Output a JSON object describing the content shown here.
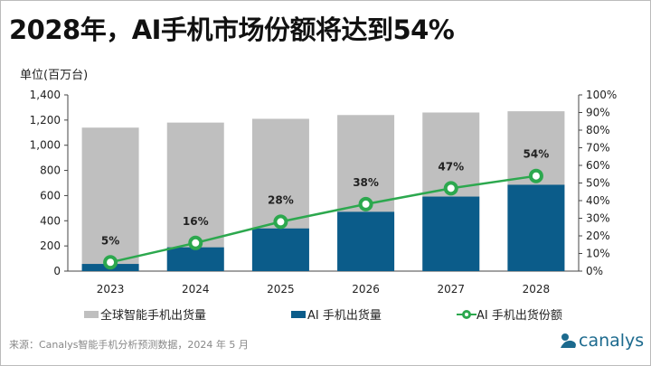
{
  "title": "2028年，AI手机市场份额将达到54%",
  "unit": "单位(百万台)",
  "source": "来源：Canalys智能手机分析预测数据，2024 年 5 月",
  "logo": "canalys",
  "colors": {
    "total": "#bfbfbf",
    "ai": "#0b5c8a",
    "share": "#2ca84e"
  },
  "chart_data": {
    "type": "bar",
    "categories": [
      "2023",
      "2024",
      "2025",
      "2026",
      "2027",
      "2028"
    ],
    "series": [
      {
        "name": "全球智能手机出货量",
        "type": "bar",
        "values": [
          1140,
          1180,
          1210,
          1240,
          1260,
          1270
        ]
      },
      {
        "name": "AI 手机出货量",
        "type": "bar",
        "values": [
          57,
          189,
          339,
          471,
          592,
          686
        ]
      },
      {
        "name": "AI 手机出货份额",
        "type": "line",
        "axis": "right",
        "values": [
          5,
          16,
          28,
          38,
          47,
          54
        ],
        "labels": [
          "5%",
          "16%",
          "28%",
          "38%",
          "47%",
          "54%"
        ]
      }
    ],
    "ylim": [
      0,
      1400
    ],
    "yticks": [
      "0",
      "200",
      "400",
      "600",
      "800",
      "1,000",
      "1,200",
      "1,400"
    ],
    "y2lim": [
      0,
      100
    ],
    "y2ticks": [
      "0%",
      "10%",
      "20%",
      "30%",
      "40%",
      "50%",
      "60%",
      "70%",
      "80%",
      "90%",
      "100%"
    ],
    "grid": false,
    "legend": "bottom"
  }
}
